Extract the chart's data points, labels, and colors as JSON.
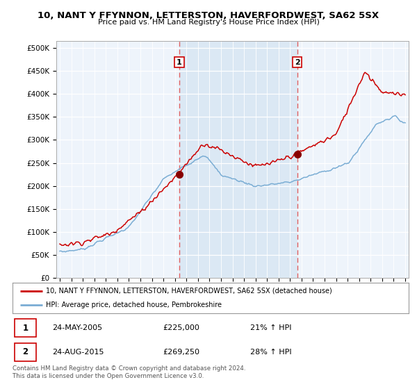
{
  "title1": "10, NANT Y FFYNNON, LETTERSTON, HAVERFORDWEST, SA62 5SX",
  "title2": "Price paid vs. HM Land Registry's House Price Index (HPI)",
  "ylabel_ticks": [
    "£0",
    "£50K",
    "£100K",
    "£150K",
    "£200K",
    "£250K",
    "£300K",
    "£350K",
    "£400K",
    "£450K",
    "£500K"
  ],
  "ytick_vals": [
    0,
    50000,
    100000,
    150000,
    200000,
    250000,
    300000,
    350000,
    400000,
    450000,
    500000
  ],
  "ylim": [
    0,
    515000
  ],
  "xlim_start": 1994.7,
  "xlim_end": 2025.3,
  "marker1_x": 2005.38,
  "marker1_y": 225000,
  "marker2_x": 2015.63,
  "marker2_y": 269250,
  "legend_line1": "10, NANT Y FFYNNON, LETTERSTON, HAVERFORDWEST, SA62 5SX (detached house)",
  "legend_line2": "HPI: Average price, detached house, Pembrokeshire",
  "table_row1": [
    "1",
    "24-MAY-2005",
    "£225,000",
    "21% ↑ HPI"
  ],
  "table_row2": [
    "2",
    "24-AUG-2015",
    "£269,250",
    "28% ↑ HPI"
  ],
  "footer": "Contains HM Land Registry data © Crown copyright and database right 2024.\nThis data is licensed under the Open Government Licence v3.0.",
  "red_color": "#cc0000",
  "blue_color": "#7aadd4",
  "shade_color": "#ddeeff",
  "dashed_color": "#e06060"
}
